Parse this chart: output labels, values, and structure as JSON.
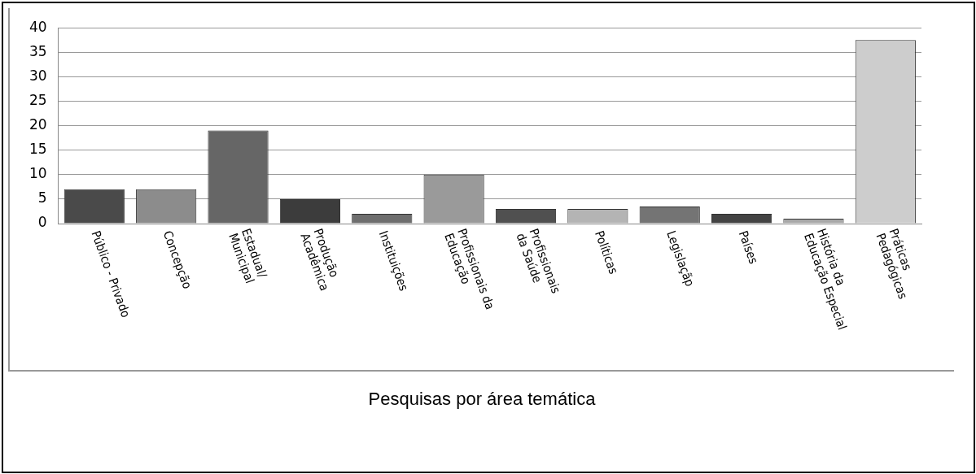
{
  "chart_data": {
    "type": "bar",
    "xlabel": "Pesquisas por área temática",
    "categories": [
      "Público - Privado",
      "Concepção",
      "Estadual/\nMunicipal",
      "Produção\nAcadêmica",
      "Instituições",
      "Profissionais da\nEducação",
      "Profissionais\nda Saúde",
      "Políticas",
      "Legislaçãp",
      "Países",
      "História da\nEducação Especial",
      "Práticas\nPedagógicas"
    ],
    "values": [
      7,
      7,
      19,
      5,
      2,
      10,
      3,
      3,
      3.5,
      2,
      1,
      37.5
    ],
    "colors": [
      "#4a4a4a",
      "#8c8c8c",
      "#666666",
      "#3c3c3c",
      "#6e6e6e",
      "#9a9a9a",
      "#505050",
      "#b4b4b4",
      "#747474",
      "#434343",
      "#a8a8a8",
      "#cdcdcd"
    ],
    "ylim": [
      0,
      40
    ],
    "yticks": [
      0,
      5,
      10,
      15,
      20,
      25,
      30,
      35,
      40
    ],
    "grid": "y",
    "legend": false
  }
}
